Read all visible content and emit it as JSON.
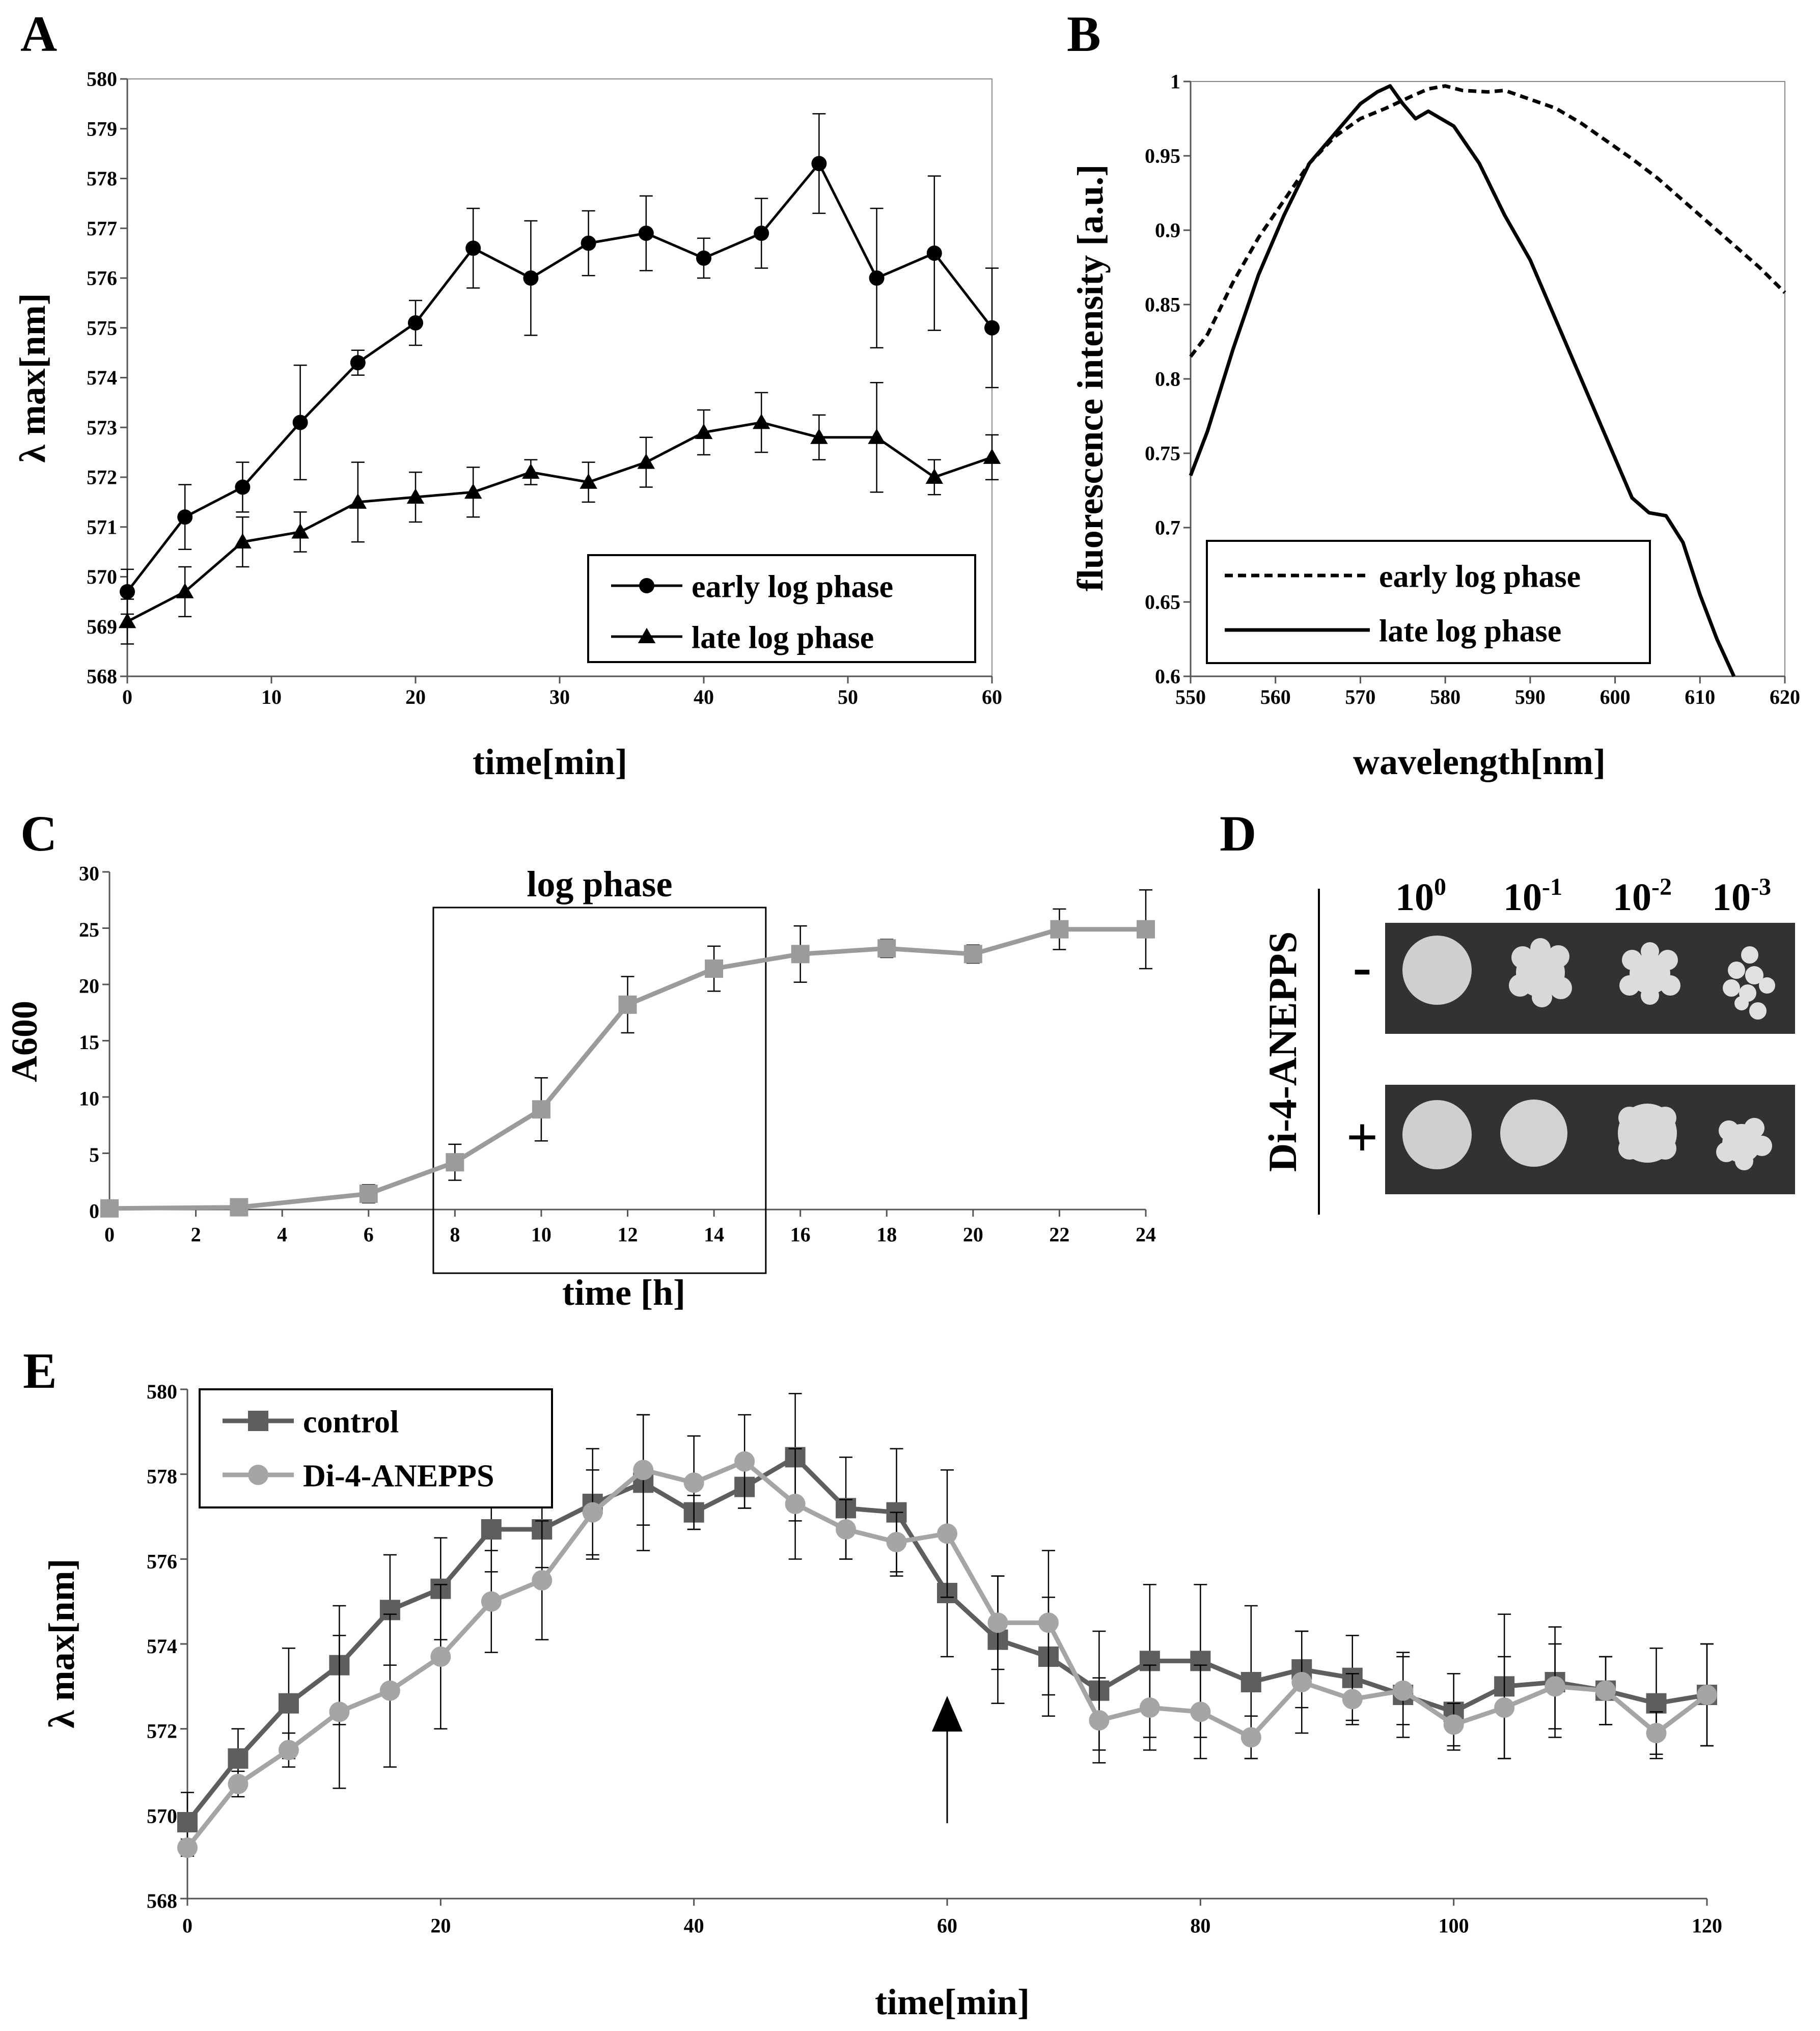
{
  "panels": {
    "A": "A",
    "B": "B",
    "C": "C",
    "D": "D",
    "E": "E"
  },
  "chart_data": [
    {
      "id": "A",
      "type": "line",
      "xlabel": "time[min]",
      "ylabel": "λ max[nm]",
      "xlim": [
        0,
        60
      ],
      "ylim": [
        568,
        580
      ],
      "xticks": [
        0,
        10,
        20,
        30,
        40,
        50,
        60
      ],
      "yticks": [
        568,
        569,
        570,
        571,
        572,
        573,
        574,
        575,
        576,
        577,
        578,
        579,
        580
      ],
      "grid": false,
      "legend_position": "bottom-right",
      "series": [
        {
          "name": "early log phase",
          "marker": "circle",
          "color": "#000000",
          "x": [
            0,
            4,
            8,
            12,
            16,
            20,
            24,
            28,
            32,
            36,
            40,
            44,
            48,
            52,
            56,
            60
          ],
          "values": [
            569.7,
            571.2,
            571.8,
            573.1,
            574.3,
            575.1,
            576.6,
            576.0,
            576.7,
            576.9,
            576.4,
            576.9,
            578.3,
            576.0,
            576.5,
            575.0
          ],
          "err": [
            0.45,
            0.65,
            0.5,
            1.15,
            0.25,
            0.45,
            0.8,
            1.15,
            0.65,
            0.75,
            0.4,
            0.7,
            1.0,
            1.4,
            1.55,
            1.2
          ]
        },
        {
          "name": "late log phase",
          "marker": "triangle",
          "color": "#000000",
          "x": [
            0,
            4,
            8,
            12,
            16,
            20,
            24,
            28,
            32,
            36,
            40,
            44,
            48,
            52,
            56,
            60
          ],
          "values": [
            569.1,
            569.7,
            570.7,
            570.9,
            571.5,
            571.6,
            571.7,
            572.1,
            571.9,
            572.3,
            572.9,
            573.1,
            572.8,
            572.8,
            572.0,
            572.4
          ],
          "err": [
            0.45,
            0.5,
            0.5,
            0.4,
            0.8,
            0.5,
            0.5,
            0.25,
            0.4,
            0.5,
            0.45,
            0.6,
            0.45,
            1.1,
            0.35,
            0.45
          ]
        }
      ]
    },
    {
      "id": "B",
      "type": "line",
      "xlabel": "wavelength[nm]",
      "ylabel": "fluorescence intensity [a.u.]",
      "xlim": [
        550,
        620
      ],
      "ylim": [
        0.6,
        1.0
      ],
      "xticks": [
        550,
        560,
        570,
        580,
        590,
        600,
        610,
        620
      ],
      "yticks": [
        0.6,
        0.65,
        0.7,
        0.75,
        0.8,
        0.85,
        0.9,
        0.95,
        1
      ],
      "grid": false,
      "legend_position": "bottom-left",
      "series": [
        {
          "name": "early log phase",
          "style": "dashed",
          "color": "#000000",
          "x": [
            550,
            552,
            555,
            558,
            561,
            564,
            567,
            570,
            573,
            576,
            578,
            580,
            582,
            585,
            587,
            590,
            593,
            596,
            599,
            602,
            605,
            608,
            611,
            614,
            617,
            620
          ],
          "values": [
            0.815,
            0.83,
            0.865,
            0.895,
            0.92,
            0.945,
            0.963,
            0.975,
            0.982,
            0.99,
            0.995,
            0.997,
            0.994,
            0.993,
            0.994,
            0.988,
            0.982,
            0.972,
            0.96,
            0.948,
            0.935,
            0.92,
            0.905,
            0.89,
            0.875,
            0.858
          ]
        },
        {
          "name": "late log phase",
          "style": "solid",
          "color": "#000000",
          "x": [
            550,
            552,
            555,
            558,
            561,
            564,
            567,
            570,
            572,
            573.5,
            575,
            576.5,
            578,
            579.5,
            581,
            584,
            587,
            590,
            593,
            596,
            599,
            602,
            604,
            606,
            608,
            610,
            612,
            614
          ],
          "values": [
            0.735,
            0.765,
            0.82,
            0.87,
            0.91,
            0.945,
            0.965,
            0.985,
            0.993,
            0.997,
            0.985,
            0.975,
            0.98,
            0.975,
            0.97,
            0.945,
            0.91,
            0.88,
            0.84,
            0.8,
            0.76,
            0.72,
            0.71,
            0.708,
            0.69,
            0.655,
            0.625,
            0.6
          ]
        }
      ]
    },
    {
      "id": "C",
      "type": "line",
      "xlabel": "time [h]",
      "ylabel": "A600",
      "xlim": [
        0,
        24
      ],
      "ylim": [
        0,
        30
      ],
      "xticks": [
        0,
        2,
        4,
        6,
        8,
        10,
        12,
        14,
        16,
        18,
        20,
        22,
        24
      ],
      "yticks": [
        0,
        5,
        10,
        15,
        20,
        25,
        30
      ],
      "grid": false,
      "annotation": "log phase",
      "annotation_range": [
        7.5,
        15.2
      ],
      "series": [
        {
          "name": "A600",
          "marker": "square",
          "color": "#9b9b9b",
          "x": [
            0,
            3,
            6,
            8,
            10,
            12,
            14,
            16,
            18,
            20,
            22,
            24
          ],
          "values": [
            0.1,
            0.2,
            1.4,
            4.2,
            8.9,
            18.2,
            21.4,
            22.7,
            23.2,
            22.7,
            24.9,
            24.9
          ],
          "err": [
            0.2,
            0.4,
            0.8,
            1.6,
            2.8,
            2.5,
            2.0,
            2.5,
            0.8,
            0.8,
            1.8,
            3.5
          ]
        }
      ]
    },
    {
      "id": "E",
      "type": "line",
      "xlabel": "time[min]",
      "ylabel": "λ max[nm]",
      "xlim": [
        0,
        120
      ],
      "ylim": [
        568,
        580
      ],
      "xticks": [
        0,
        20,
        40,
        60,
        80,
        100,
        120
      ],
      "yticks": [
        568,
        570,
        572,
        574,
        576,
        578,
        580
      ],
      "grid": false,
      "legend_position": "top-left",
      "arrow_at_x": 60,
      "series": [
        {
          "name": "control",
          "marker": "square",
          "color": "#5e5e5e",
          "x": [
            0,
            4,
            8,
            12,
            16,
            20,
            24,
            28,
            32,
            36,
            40,
            44,
            48,
            52,
            56,
            60,
            64,
            68,
            72,
            76,
            80,
            84,
            88,
            92,
            96,
            100,
            104,
            108,
            112,
            116,
            120
          ],
          "values": [
            569.8,
            571.3,
            572.6,
            573.5,
            574.8,
            575.3,
            576.7,
            576.7,
            577.3,
            577.8,
            577.1,
            577.7,
            578.4,
            577.2,
            577.1,
            575.2,
            574.1,
            573.7,
            572.9,
            573.6,
            573.6,
            573.1,
            573.4,
            573.2,
            572.8,
            572.4,
            573.0,
            573.1,
            572.9,
            572.6,
            572.8
          ],
          "err": [
            0.7,
            0.7,
            1.3,
            1.4,
            1.3,
            1.2,
            1.0,
            0.9,
            1.3,
            1.6,
            0.4,
            0.5,
            1.5,
            1.2,
            1.5,
            1.5,
            1.5,
            1.4,
            1.4,
            1.8,
            1.8,
            1.8,
            0.9,
            1.0,
            1.0,
            0.9,
            1.7,
            1.3,
            0.8,
            1.3,
            1.2
          ]
        },
        {
          "name": "Di-4-ANEPPS",
          "marker": "circle",
          "color": "#a5a5a5",
          "x": [
            0,
            4,
            8,
            12,
            16,
            20,
            24,
            28,
            32,
            36,
            40,
            44,
            48,
            52,
            56,
            60,
            64,
            68,
            72,
            76,
            80,
            84,
            88,
            92,
            96,
            100,
            104,
            108,
            112,
            116,
            120
          ],
          "values": [
            569.2,
            570.7,
            571.5,
            572.4,
            572.9,
            573.7,
            575.0,
            575.5,
            577.1,
            578.1,
            577.8,
            578.3,
            577.3,
            576.7,
            576.4,
            576.6,
            574.5,
            574.5,
            572.2,
            572.5,
            572.4,
            571.8,
            573.1,
            572.7,
            572.9,
            572.1,
            572.5,
            573.0,
            572.9,
            571.9,
            572.8
          ],
          "err": [
            0.2,
            0.3,
            0.4,
            1.8,
            1.8,
            1.7,
            1.2,
            1.4,
            1.0,
            1.3,
            1.1,
            1.1,
            1.3,
            0.7,
            0.7,
            1.5,
            1.1,
            1.7,
            1.0,
            1.0,
            1.1,
            0.5,
            1.2,
            0.6,
            0.8,
            0.5,
            1.2,
            1.0,
            0.8,
            0.5,
            1.2
          ]
        }
      ]
    }
  ],
  "panel_d": {
    "side_label": "Di-4-ANEPPS",
    "dilutions": [
      {
        "base": "10",
        "exp": "0"
      },
      {
        "base": "10",
        "exp": "-1"
      },
      {
        "base": "10",
        "exp": "-2"
      },
      {
        "base": "10",
        "exp": "-3"
      }
    ],
    "rows": [
      {
        "sign": "-"
      },
      {
        "sign": "+"
      }
    ]
  }
}
